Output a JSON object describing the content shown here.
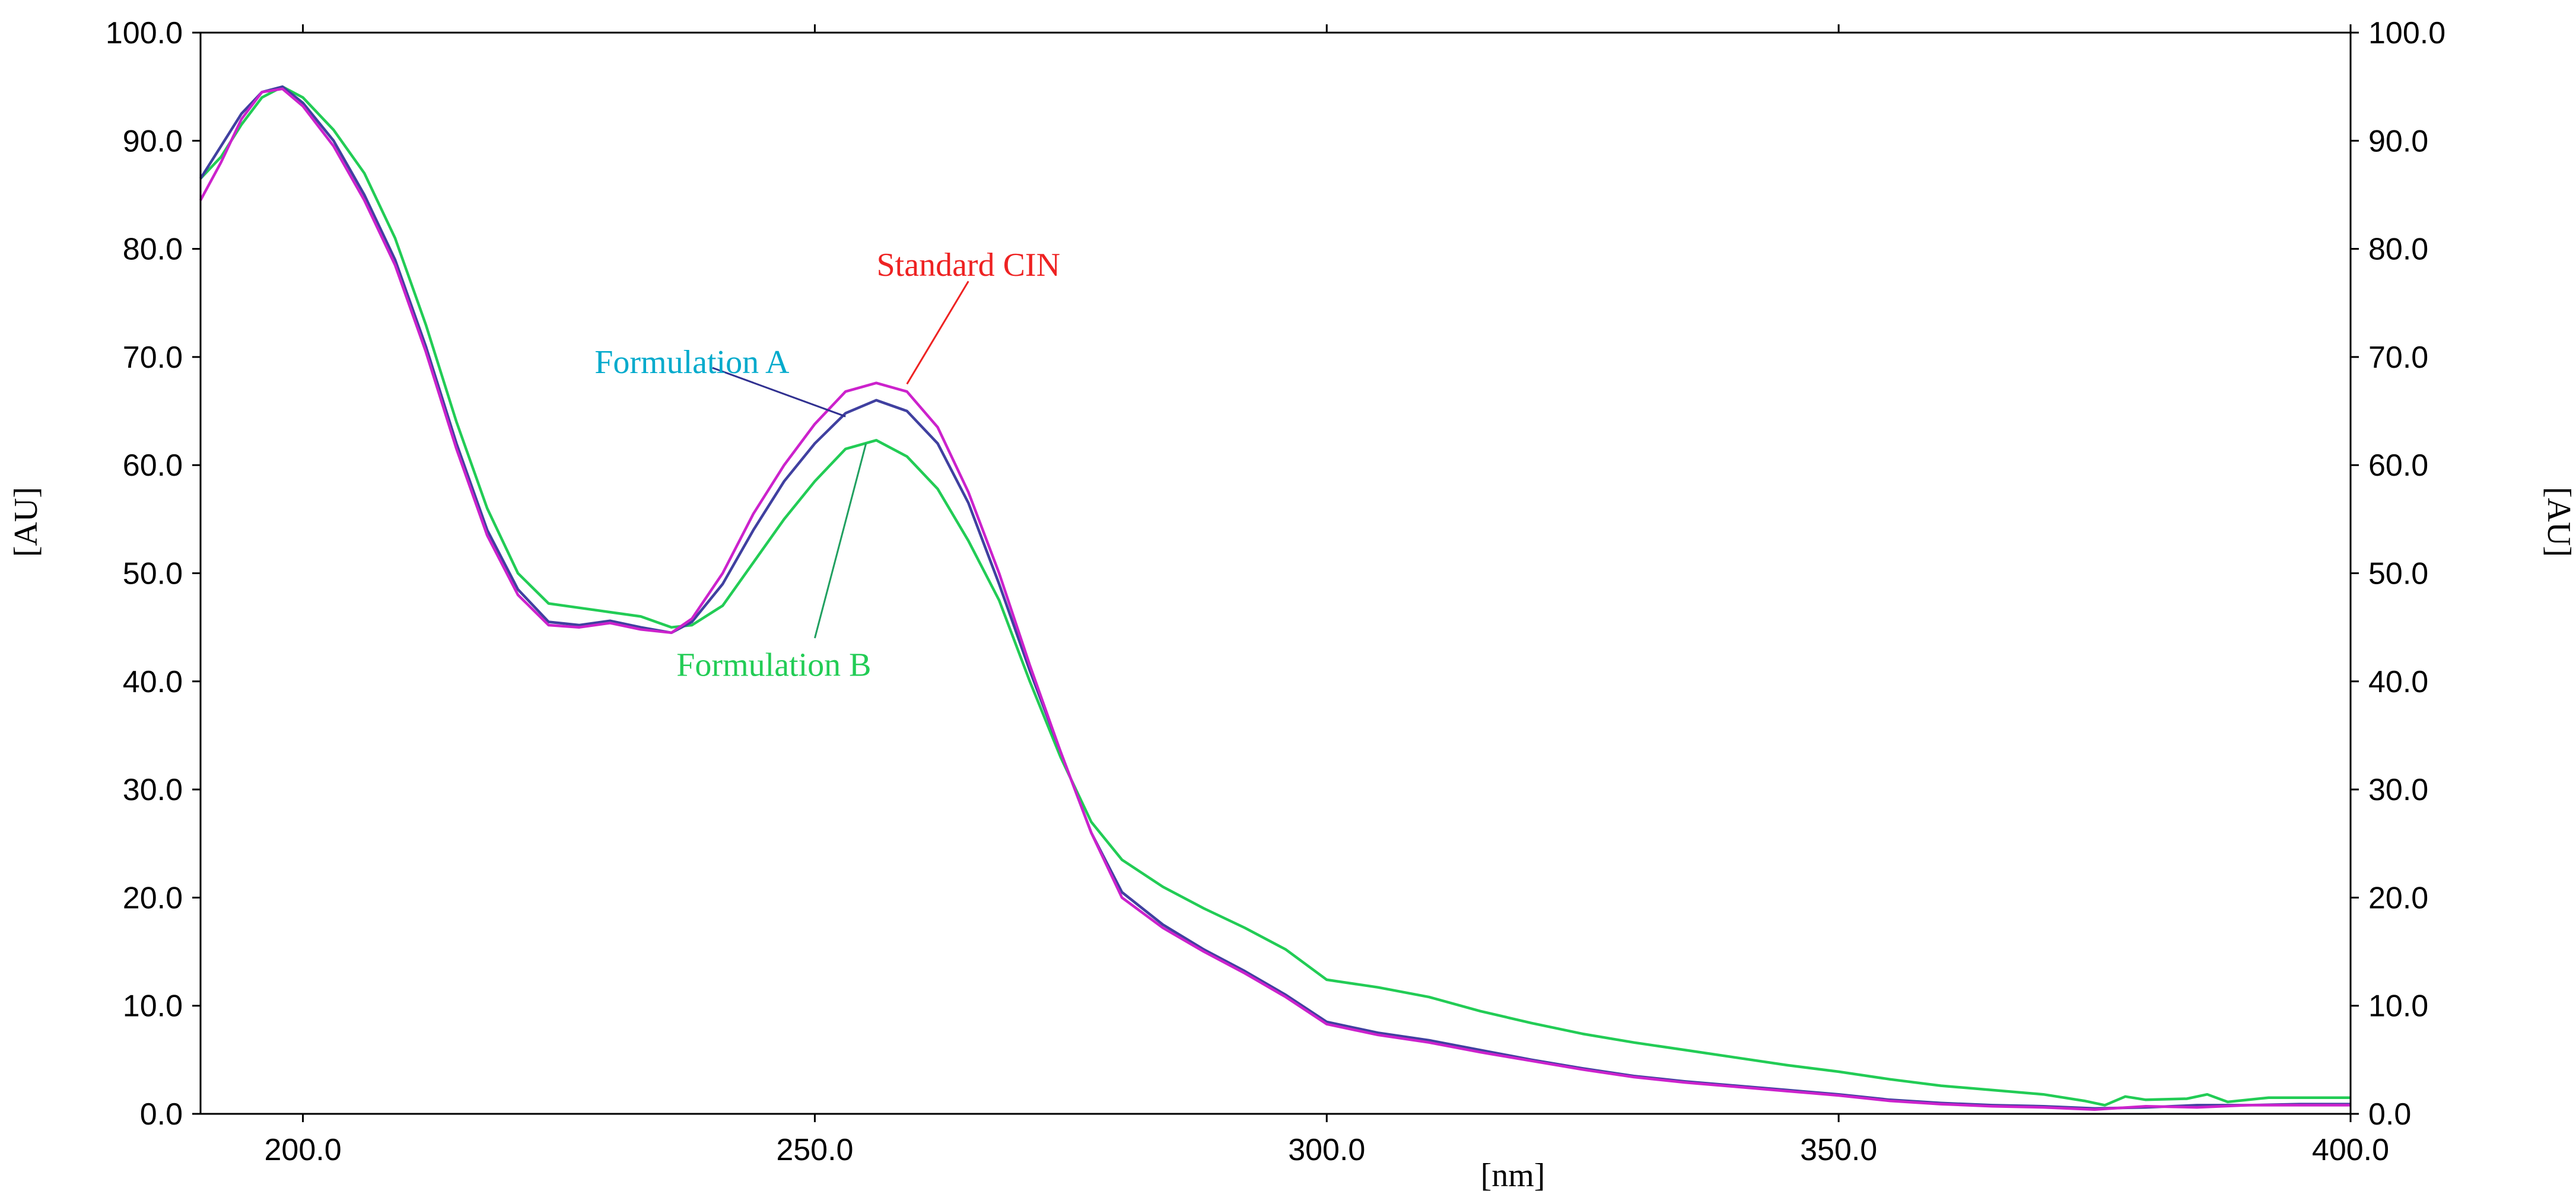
{
  "chart_data": {
    "type": "line",
    "title": "",
    "xlabel": "[nm]",
    "ylabel": "[AU]",
    "ylabel_right": "[AU]",
    "xlim": [
      190,
      400
    ],
    "ylim": [
      0,
      100
    ],
    "grid": false,
    "x_ticks": [
      {
        "value": 200,
        "label": "200.0"
      },
      {
        "value": 250,
        "label": "250.0"
      },
      {
        "value": 300,
        "label": "300.0"
      },
      {
        "value": 350,
        "label": "350.0"
      },
      {
        "value": 400,
        "label": "400.0"
      }
    ],
    "y_ticks": [
      {
        "value": 0,
        "label": "0.0"
      },
      {
        "value": 10,
        "label": "10.0"
      },
      {
        "value": 20,
        "label": "20.0"
      },
      {
        "value": 30,
        "label": "30.0"
      },
      {
        "value": 40,
        "label": "40.0"
      },
      {
        "value": 50,
        "label": "50.0"
      },
      {
        "value": 60,
        "label": "60.0"
      },
      {
        "value": 70,
        "label": "70.0"
      },
      {
        "value": 80,
        "label": "80.0"
      },
      {
        "value": 90,
        "label": "90.0"
      },
      {
        "value": 100,
        "label": "100.0"
      }
    ],
    "series": [
      {
        "name": "Formulation B",
        "color": "#22cc55",
        "points": [
          [
            190,
            86.5
          ],
          [
            192,
            88.5
          ],
          [
            194,
            91.5
          ],
          [
            196,
            94
          ],
          [
            198,
            95
          ],
          [
            200,
            94
          ],
          [
            203,
            91
          ],
          [
            206,
            87
          ],
          [
            209,
            81
          ],
          [
            212,
            73
          ],
          [
            215,
            64
          ],
          [
            218,
            56
          ],
          [
            221,
            50
          ],
          [
            224,
            47.2
          ],
          [
            227,
            46.8
          ],
          [
            230,
            46.4
          ],
          [
            233,
            46
          ],
          [
            236,
            45
          ],
          [
            238,
            45.2
          ],
          [
            241,
            47
          ],
          [
            244,
            51
          ],
          [
            247,
            55
          ],
          [
            250,
            58.5
          ],
          [
            253,
            61.5
          ],
          [
            256,
            62.3
          ],
          [
            259,
            60.8
          ],
          [
            262,
            57.8
          ],
          [
            265,
            53
          ],
          [
            268,
            47.5
          ],
          [
            271,
            40
          ],
          [
            274,
            33
          ],
          [
            277,
            27
          ],
          [
            280,
            23.5
          ],
          [
            284,
            21
          ],
          [
            288,
            19
          ],
          [
            292,
            17.2
          ],
          [
            296,
            15.2
          ],
          [
            300,
            12.4
          ],
          [
            305,
            11.7
          ],
          [
            310,
            10.8
          ],
          [
            315,
            9.5
          ],
          [
            320,
            8.4
          ],
          [
            325,
            7.4
          ],
          [
            330,
            6.6
          ],
          [
            335,
            5.9
          ],
          [
            340,
            5.2
          ],
          [
            345,
            4.5
          ],
          [
            350,
            3.9
          ],
          [
            355,
            3.2
          ],
          [
            360,
            2.6
          ],
          [
            365,
            2.2
          ],
          [
            370,
            1.8
          ],
          [
            374,
            1.2
          ],
          [
            376,
            0.8
          ],
          [
            378,
            1.6
          ],
          [
            380,
            1.3
          ],
          [
            384,
            1.4
          ],
          [
            386,
            1.8
          ],
          [
            388,
            1.1
          ],
          [
            392,
            1.5
          ],
          [
            396,
            1.5
          ],
          [
            400,
            1.5
          ]
        ]
      },
      {
        "name": "Formulation A",
        "color": "#4040a0",
        "points": [
          [
            190,
            86.5
          ],
          [
            192,
            89.5
          ],
          [
            194,
            92.5
          ],
          [
            196,
            94.5
          ],
          [
            198,
            95
          ],
          [
            200,
            93.5
          ],
          [
            203,
            90
          ],
          [
            206,
            85
          ],
          [
            209,
            79
          ],
          [
            212,
            71
          ],
          [
            215,
            62
          ],
          [
            218,
            54
          ],
          [
            221,
            48.5
          ],
          [
            224,
            45.5
          ],
          [
            227,
            45.2
          ],
          [
            230,
            45.6
          ],
          [
            233,
            45
          ],
          [
            236,
            44.5
          ],
          [
            238,
            45.5
          ],
          [
            241,
            49
          ],
          [
            244,
            54
          ],
          [
            247,
            58.5
          ],
          [
            250,
            62
          ],
          [
            253,
            64.8
          ],
          [
            256,
            66
          ],
          [
            259,
            65
          ],
          [
            262,
            62
          ],
          [
            265,
            56.5
          ],
          [
            268,
            49
          ],
          [
            271,
            41
          ],
          [
            274,
            33.5
          ],
          [
            277,
            26
          ],
          [
            280,
            20.5
          ],
          [
            284,
            17.5
          ],
          [
            288,
            15.2
          ],
          [
            292,
            13.2
          ],
          [
            296,
            11
          ],
          [
            300,
            8.5
          ],
          [
            305,
            7.5
          ],
          [
            310,
            6.8
          ],
          [
            315,
            5.9
          ],
          [
            320,
            5
          ],
          [
            325,
            4.2
          ],
          [
            330,
            3.5
          ],
          [
            335,
            3
          ],
          [
            340,
            2.6
          ],
          [
            345,
            2.2
          ],
          [
            350,
            1.8
          ],
          [
            355,
            1.3
          ],
          [
            360,
            1
          ],
          [
            365,
            0.8
          ],
          [
            370,
            0.7
          ],
          [
            375,
            0.5
          ],
          [
            380,
            0.6
          ],
          [
            385,
            0.8
          ],
          [
            390,
            0.8
          ],
          [
            395,
            0.9
          ],
          [
            400,
            0.9
          ]
        ]
      },
      {
        "name": "Standard CIN",
        "color": "#cc22cc",
        "points": [
          [
            190,
            84.5
          ],
          [
            192,
            88
          ],
          [
            194,
            92
          ],
          [
            196,
            94.5
          ],
          [
            198,
            94.8
          ],
          [
            200,
            93.2
          ],
          [
            203,
            89.5
          ],
          [
            206,
            84.5
          ],
          [
            209,
            78.5
          ],
          [
            212,
            70.5
          ],
          [
            215,
            61.5
          ],
          [
            218,
            53.5
          ],
          [
            221,
            48
          ],
          [
            224,
            45.2
          ],
          [
            227,
            45
          ],
          [
            230,
            45.4
          ],
          [
            233,
            44.8
          ],
          [
            236,
            44.5
          ],
          [
            238,
            45.8
          ],
          [
            241,
            50
          ],
          [
            244,
            55.5
          ],
          [
            247,
            60
          ],
          [
            250,
            63.8
          ],
          [
            253,
            66.8
          ],
          [
            256,
            67.6
          ],
          [
            259,
            66.8
          ],
          [
            262,
            63.5
          ],
          [
            265,
            57.5
          ],
          [
            268,
            50
          ],
          [
            271,
            41.5
          ],
          [
            274,
            33.5
          ],
          [
            277,
            26
          ],
          [
            280,
            20
          ],
          [
            284,
            17.2
          ],
          [
            288,
            15
          ],
          [
            292,
            13
          ],
          [
            296,
            10.8
          ],
          [
            300,
            8.3
          ],
          [
            305,
            7.3
          ],
          [
            310,
            6.6
          ],
          [
            315,
            5.7
          ],
          [
            320,
            4.9
          ],
          [
            325,
            4.1
          ],
          [
            330,
            3.4
          ],
          [
            335,
            2.9
          ],
          [
            340,
            2.5
          ],
          [
            345,
            2.1
          ],
          [
            350,
            1.7
          ],
          [
            355,
            1.2
          ],
          [
            360,
            0.9
          ],
          [
            365,
            0.7
          ],
          [
            370,
            0.6
          ],
          [
            375,
            0.4
          ],
          [
            380,
            0.7
          ],
          [
            385,
            0.6
          ],
          [
            390,
            0.8
          ],
          [
            395,
            0.8
          ],
          [
            400,
            0.8
          ]
        ]
      }
    ],
    "annotations": [
      {
        "text": "Standard CIN",
        "color": "#ee2222",
        "line_color": "#ee2222",
        "x": 265,
        "y": 78.5,
        "anchor_to": [
          259,
          67.5
        ],
        "line_from": [
          265,
          77
        ]
      },
      {
        "text": "Formulation A",
        "color": "#00aacc",
        "line_color": "#303090",
        "x": 238,
        "y": 69.5,
        "anchor_to": [
          253,
          64.5
        ],
        "line_from": [
          240,
          69
        ]
      },
      {
        "text": "Formulation B",
        "color": "#22cc55",
        "line_color": "#20a060",
        "x": 246,
        "y": 41.5,
        "anchor_to": [
          255,
          62
        ],
        "line_from": [
          250,
          44
        ]
      }
    ]
  }
}
